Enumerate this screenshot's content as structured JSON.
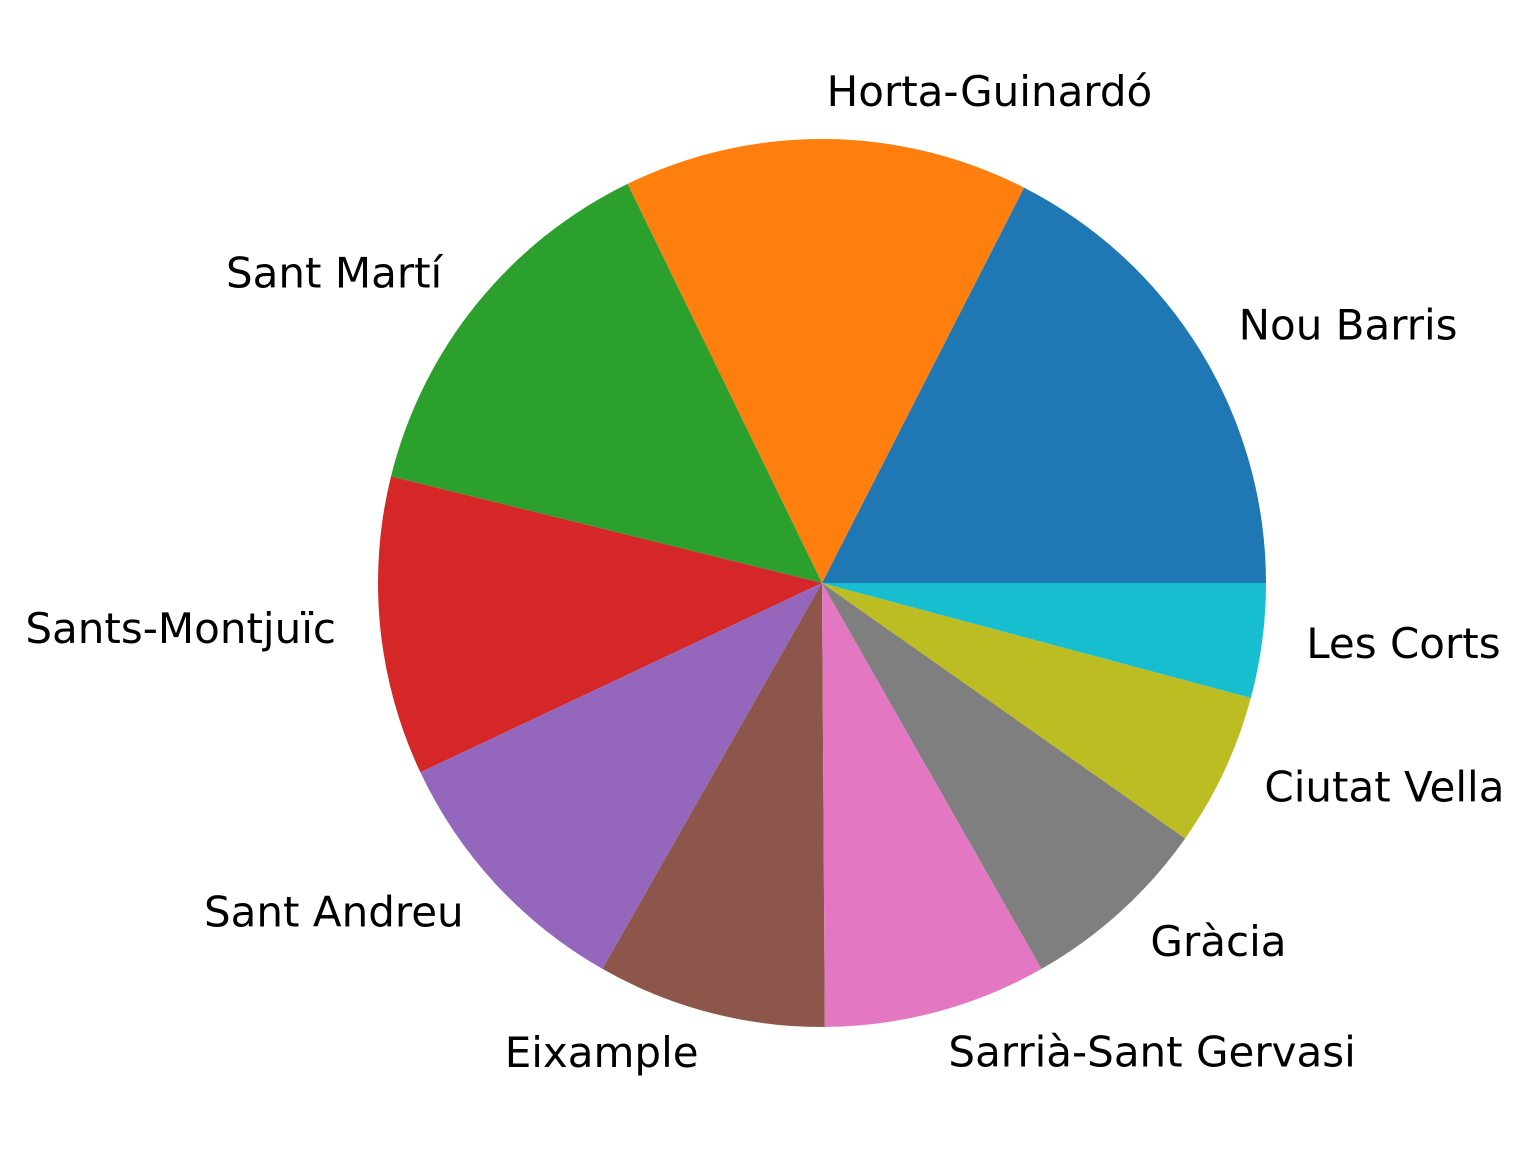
{
  "chart_data": {
    "type": "pie",
    "title": "",
    "start_angle_deg": 0,
    "direction": "counterclockwise",
    "slices": [
      {
        "label": "Nou Barris",
        "value": 17.2,
        "color": "#1f77b4"
      },
      {
        "label": "Horta-Guinardó",
        "value": 14.5,
        "color": "#ff7f0e"
      },
      {
        "label": "Sant Martí",
        "value": 13.7,
        "color": "#2ca02c"
      },
      {
        "label": "Sants-Montjuïc",
        "value": 10.7,
        "color": "#d62728"
      },
      {
        "label": "Sant Andreu",
        "value": 9.6,
        "color": "#9467bd"
      },
      {
        "label": "Eixample",
        "value": 8.2,
        "color": "#8c564b"
      },
      {
        "label": "Sarrià-Sant Gervasi",
        "value": 8.0,
        "color": "#e377c2"
      },
      {
        "label": "Gràcia",
        "value": 6.9,
        "color": "#7f7f7f"
      },
      {
        "label": "Ciutat Vella",
        "value": 5.5,
        "color": "#bcbd22"
      },
      {
        "label": "Les Corts",
        "value": 4.1,
        "color": "#17becf"
      }
    ]
  }
}
